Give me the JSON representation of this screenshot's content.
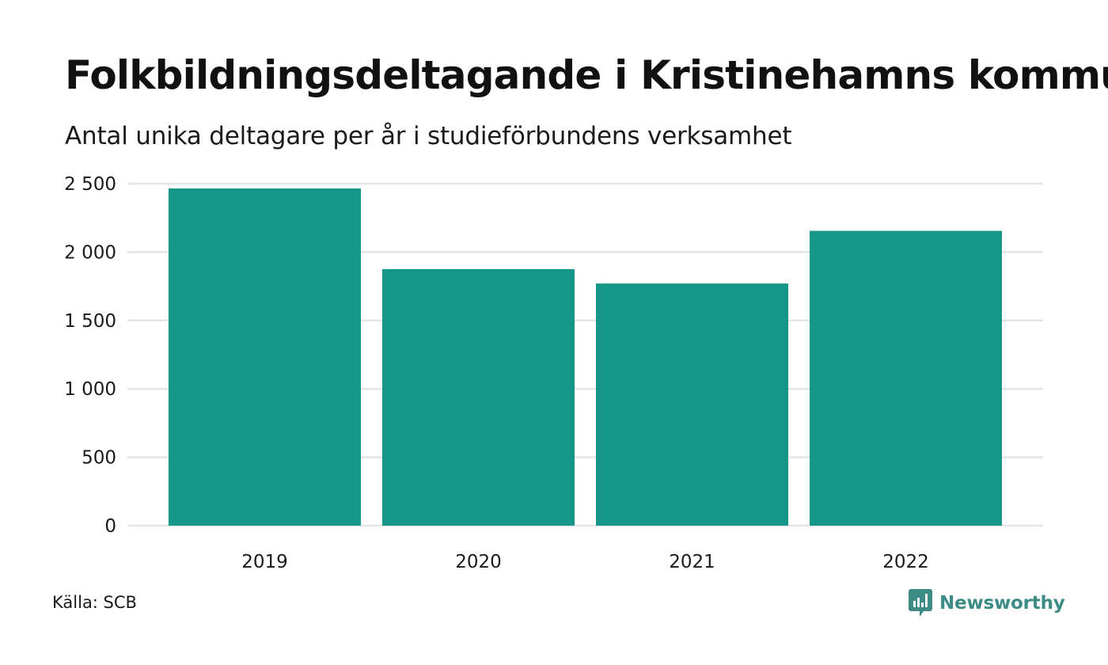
{
  "header": {
    "title": "Folkbildningsdeltagande i Kristinehamns kommun",
    "subtitle": "Antal unika deltagare per år i studieförbundens verksamhet"
  },
  "chart_data": {
    "type": "bar",
    "title": "Folkbildningsdeltagande i Kristinehamns kommun",
    "subtitle": "Antal unika deltagare per år i studieförbundens verksamhet",
    "categories": [
      "2019",
      "2020",
      "2021",
      "2022"
    ],
    "values": [
      2465,
      1875,
      1770,
      2155
    ],
    "xlabel": "",
    "ylabel": "",
    "ylim": [
      0,
      2500
    ],
    "yticks": [
      0,
      500,
      1000,
      1500,
      2000,
      2500
    ],
    "ytick_labels": [
      "0",
      "500",
      "1 000",
      "1 500",
      "2 000",
      "2 500"
    ],
    "grid": true,
    "legend": "none"
  },
  "colors": {
    "bar": "#159688",
    "grid": "#e2e4e6",
    "brand": "#3c8b84"
  },
  "footer": {
    "source": "Källa: SCB",
    "brand_name": "Newsworthy",
    "brand_icon": "bar-chart-speech-bubble-icon"
  }
}
